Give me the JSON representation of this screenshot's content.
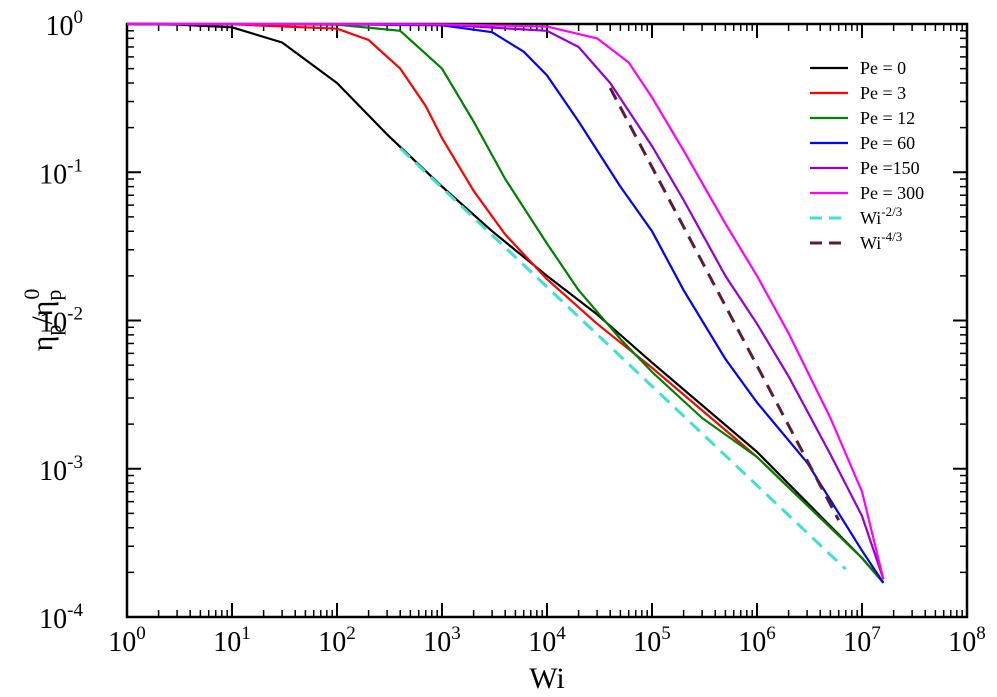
{
  "chart_data": {
    "type": "line",
    "xlabel": "Wi",
    "ylabel": {
      "base": "η",
      "sub": "p",
      "sep": "/",
      "base2": "η",
      "sub2": "p",
      "sup2": "0"
    },
    "x_scale": "log",
    "y_scale": "log",
    "xlim": [
      1,
      100000000
    ],
    "ylim": [
      0.0001,
      1
    ],
    "x_ticks": [
      {
        "base": "10",
        "exp": "0",
        "value": 1
      },
      {
        "base": "10",
        "exp": "1",
        "value": 10
      },
      {
        "base": "10",
        "exp": "2",
        "value": 100
      },
      {
        "base": "10",
        "exp": "3",
        "value": 1000
      },
      {
        "base": "10",
        "exp": "4",
        "value": 10000
      },
      {
        "base": "10",
        "exp": "5",
        "value": 100000
      },
      {
        "base": "10",
        "exp": "6",
        "value": 1000000
      },
      {
        "base": "10",
        "exp": "7",
        "value": 10000000
      },
      {
        "base": "10",
        "exp": "8",
        "value": 100000000
      }
    ],
    "y_ticks": [
      {
        "base": "10",
        "exp": "-4",
        "value": 0.0001
      },
      {
        "base": "10",
        "exp": "-3",
        "value": 0.001
      },
      {
        "base": "10",
        "exp": "-2",
        "value": 0.01
      },
      {
        "base": "10",
        "exp": "-1",
        "value": 0.1
      },
      {
        "base": "10",
        "exp": "0",
        "value": 1
      }
    ],
    "grid": false,
    "legend_position": "top-right",
    "series": [
      {
        "name": "Pe = 0",
        "color": "#000000",
        "dash": "solid",
        "x": [
          1,
          3,
          10,
          30,
          100,
          300,
          1000,
          3000,
          10000,
          30000,
          100000,
          1000000,
          10000000,
          16000000
        ],
        "y": [
          1.0,
          0.99,
          0.95,
          0.75,
          0.4,
          0.18,
          0.08,
          0.04,
          0.02,
          0.011,
          0.0052,
          0.0013,
          0.00025,
          0.00017
        ]
      },
      {
        "name": "Pe = 3",
        "color": "#ff0000",
        "dash": "solid",
        "x": [
          1,
          10,
          100,
          200,
          400,
          700,
          1000,
          2000,
          4000,
          10000,
          30000,
          100000,
          1000000,
          10000000,
          16000000
        ],
        "y": [
          1.0,
          0.995,
          0.93,
          0.78,
          0.5,
          0.28,
          0.17,
          0.075,
          0.038,
          0.019,
          0.0095,
          0.0048,
          0.0012,
          0.00025,
          0.00017
        ]
      },
      {
        "name": "Pe = 12",
        "color": "#008000",
        "dash": "solid",
        "x": [
          1,
          100,
          400,
          1000,
          2000,
          4000,
          10000,
          20000,
          50000,
          100000,
          300000,
          1000000,
          10000000,
          16000000
        ],
        "y": [
          1.0,
          0.99,
          0.9,
          0.5,
          0.22,
          0.09,
          0.033,
          0.016,
          0.0075,
          0.0045,
          0.0022,
          0.0012,
          0.00025,
          0.00017
        ]
      },
      {
        "name": "Pe = 60",
        "color": "#0000ff",
        "dash": "solid",
        "x": [
          1,
          100,
          1000,
          3000,
          6000,
          10000,
          20000,
          50000,
          100000,
          200000,
          500000,
          1000000,
          3000000,
          10000000,
          16000000
        ],
        "y": [
          1.0,
          0.995,
          0.98,
          0.88,
          0.65,
          0.45,
          0.22,
          0.08,
          0.04,
          0.016,
          0.0055,
          0.0028,
          0.0011,
          0.00028,
          0.00017
        ]
      },
      {
        "name": "Pe =150",
        "color": "#9400d3",
        "dash": "solid",
        "x": [
          1,
          1000,
          10000,
          20000,
          40000,
          100000,
          200000,
          500000,
          1000000,
          2000000,
          5000000,
          10000000,
          16000000
        ],
        "y": [
          1.0,
          0.99,
          0.9,
          0.7,
          0.4,
          0.15,
          0.065,
          0.02,
          0.0095,
          0.0042,
          0.00125,
          0.00048,
          0.00018
        ]
      },
      {
        "name": "Pe = 300",
        "color": "#ff00ff",
        "dash": "solid",
        "x": [
          1,
          1000,
          10000,
          30000,
          60000,
          100000,
          200000,
          500000,
          1000000,
          2000000,
          5000000,
          10000000,
          16000000
        ],
        "y": [
          1.0,
          0.995,
          0.96,
          0.8,
          0.55,
          0.32,
          0.14,
          0.045,
          0.02,
          0.0082,
          0.0022,
          0.0007,
          0.00018
        ]
      },
      {
        "name": "Wi^-2/3",
        "label": {
          "base": "Wi",
          "sup": "-2/3"
        },
        "color": "#40e0d0",
        "dash": "dashed",
        "x": [
          400,
          7000000
        ],
        "y": [
          0.145,
          0.00021
        ]
      },
      {
        "name": "Wi^-4/3",
        "label": {
          "base": "Wi",
          "sup": "-4/3"
        },
        "color": "#5c1a3d",
        "dash": "dashed",
        "x": [
          40000,
          6000000
        ],
        "y": [
          0.37,
          0.00045
        ]
      }
    ]
  }
}
